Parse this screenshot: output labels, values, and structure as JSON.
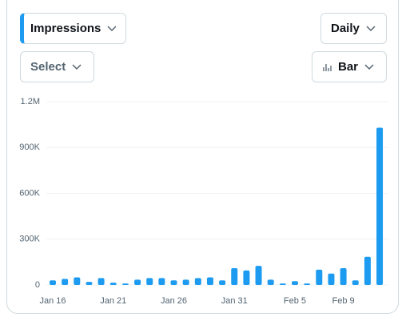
{
  "controls": {
    "metric": "Impressions",
    "period": "Daily",
    "filter": "Select",
    "chart_type": "Bar"
  },
  "chart_data": {
    "type": "bar",
    "color": "#1d9bf0",
    "grid": true,
    "categories": [
      "Jan 16",
      null,
      null,
      null,
      null,
      "Jan 21",
      null,
      null,
      null,
      null,
      "Jan 26",
      null,
      null,
      null,
      null,
      "Jan 31",
      null,
      null,
      null,
      null,
      "Feb 5",
      null,
      null,
      null,
      "Feb 9",
      null,
      null,
      null
    ],
    "values": [
      30000,
      40000,
      50000,
      20000,
      45000,
      15000,
      10000,
      35000,
      45000,
      45000,
      30000,
      35000,
      45000,
      50000,
      30000,
      110000,
      95000,
      125000,
      35000,
      10000,
      25000,
      10000,
      100000,
      75000,
      110000,
      30000,
      185000,
      1030000
    ],
    "ylim": [
      0,
      1200000
    ],
    "yticks": [
      0,
      {
        "value": 300000,
        "label": "300K"
      },
      {
        "value": 600000,
        "label": "600K"
      },
      {
        "value": 900000,
        "label": "900K"
      },
      {
        "value": 1200000,
        "label": "1.2M"
      }
    ]
  }
}
